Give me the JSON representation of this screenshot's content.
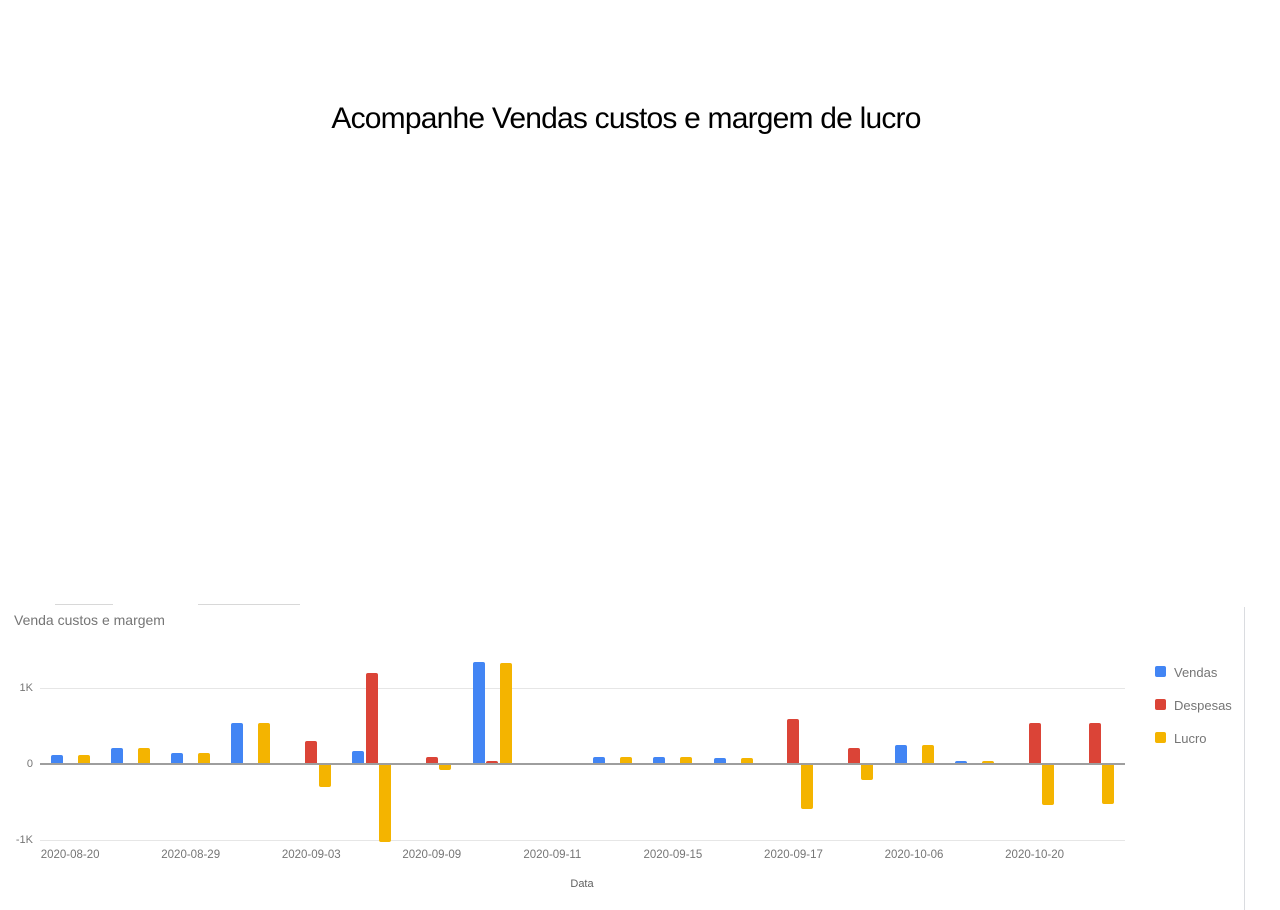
{
  "slide": {
    "title": "Acompanhe Vendas custos e margem de lucro"
  },
  "chart": {
    "title": "Venda custos e margem",
    "x_axis_title": "Data",
    "y_ticks": [
      {
        "label": "1K",
        "value": 1000
      },
      {
        "label": "0",
        "value": 0
      },
      {
        "label": "-1K",
        "value": -1000
      }
    ],
    "legend": [
      {
        "label": "Vendas",
        "color": "#4285F4"
      },
      {
        "label": "Despesas",
        "color": "#DB4437"
      },
      {
        "label": "Lucro",
        "color": "#F4B400"
      }
    ],
    "colors": {
      "grid": "#e6e6e6",
      "axis": "#9e9e9e",
      "text": "#757575",
      "frame": "#dadce0"
    }
  },
  "chart_data": {
    "type": "bar",
    "title": "Venda custos e margem",
    "xlabel": "Data",
    "ylabel": "",
    "ylim": [
      -1100,
      1450
    ],
    "grid": true,
    "legend_position": "right",
    "note": "grouped column chart; only every other category label is shown on the axis",
    "categories": [
      "2020-08-20",
      "",
      "2020-08-29",
      "",
      "2020-09-03",
      "",
      "2020-09-09",
      "",
      "2020-09-11",
      "",
      "2020-09-15",
      "",
      "2020-09-17",
      "",
      "2020-10-06",
      "",
      "2020-10-20",
      ""
    ],
    "series": [
      {
        "name": "Vendas",
        "color": "#4285F4",
        "values": [
          100,
          200,
          130,
          520,
          0,
          160,
          0,
          1330,
          0,
          80,
          85,
          60,
          0,
          0,
          235,
          30,
          0,
          0
        ]
      },
      {
        "name": "Despesas",
        "color": "#DB4437",
        "values": [
          0,
          0,
          0,
          0,
          290,
          1180,
          85,
          20,
          0,
          0,
          0,
          0,
          580,
          200,
          0,
          0,
          520,
          520
        ]
      },
      {
        "name": "Lucro",
        "color": "#F4B400",
        "values": [
          100,
          200,
          130,
          520,
          -290,
          -1010,
          -70,
          1310,
          0,
          80,
          85,
          60,
          -580,
          -200,
          235,
          30,
          -520,
          -510
        ]
      }
    ]
  }
}
